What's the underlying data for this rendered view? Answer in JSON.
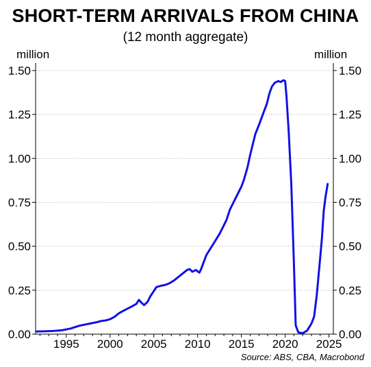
{
  "title": "SHORT-TERM ARRIVALS FROM CHINA",
  "subtitle": "(12 month aggregate)",
  "unit_left": "million",
  "unit_right": "million",
  "source": "Source: ABS, CBA, Macrobond",
  "colors": {
    "line": "#1010e6",
    "grid": "#c8c8c8",
    "axis": "#000000"
  },
  "chart_data": {
    "type": "line",
    "title": "SHORT-TERM ARRIVALS FROM CHINA",
    "subtitle": "(12 month aggregate)",
    "ylabel": "million",
    "ylim": [
      0,
      1.5
    ],
    "xlim": [
      1991.5,
      2025.5
    ],
    "y_ticks": [
      0.0,
      0.25,
      0.5,
      0.75,
      1.0,
      1.25,
      1.5
    ],
    "y_tick_labels": [
      "0.00",
      "0.25",
      "0.50",
      "0.75",
      "1.00",
      "1.25",
      "1.50"
    ],
    "x_ticks": [
      1995,
      2000,
      2005,
      2010,
      2015,
      2020,
      2025
    ],
    "x_tick_labels": [
      "1995",
      "2000",
      "2005",
      "2010",
      "2015",
      "2020",
      "2025"
    ],
    "grid": true,
    "series": [
      {
        "values": [
          [
            1991.6,
            0.015
          ],
          [
            1992.5,
            0.016
          ],
          [
            1993.5,
            0.018
          ],
          [
            1994.5,
            0.022
          ],
          [
            1995.5,
            0.032
          ],
          [
            1996.5,
            0.048
          ],
          [
            1997.5,
            0.058
          ],
          [
            1998.5,
            0.068
          ],
          [
            1999.0,
            0.075
          ],
          [
            1999.5,
            0.078
          ],
          [
            2000.0,
            0.085
          ],
          [
            2000.5,
            0.098
          ],
          [
            2001.0,
            0.118
          ],
          [
            2001.5,
            0.132
          ],
          [
            2002.0,
            0.145
          ],
          [
            2002.5,
            0.158
          ],
          [
            2003.0,
            0.172
          ],
          [
            2003.3,
            0.195
          ],
          [
            2003.6,
            0.178
          ],
          [
            2003.9,
            0.165
          ],
          [
            2004.3,
            0.185
          ],
          [
            2004.6,
            0.215
          ],
          [
            2005.0,
            0.245
          ],
          [
            2005.3,
            0.268
          ],
          [
            2005.8,
            0.275
          ],
          [
            2006.3,
            0.28
          ],
          [
            2006.8,
            0.29
          ],
          [
            2007.3,
            0.305
          ],
          [
            2007.8,
            0.325
          ],
          [
            2008.3,
            0.345
          ],
          [
            2008.8,
            0.365
          ],
          [
            2009.1,
            0.37
          ],
          [
            2009.4,
            0.355
          ],
          [
            2009.8,
            0.365
          ],
          [
            2010.2,
            0.35
          ],
          [
            2010.4,
            0.37
          ],
          [
            2010.7,
            0.41
          ],
          [
            2011.0,
            0.45
          ],
          [
            2011.5,
            0.49
          ],
          [
            2012.0,
            0.53
          ],
          [
            2012.5,
            0.57
          ],
          [
            2013.0,
            0.62
          ],
          [
            2013.3,
            0.65
          ],
          [
            2013.7,
            0.71
          ],
          [
            2014.0,
            0.74
          ],
          [
            2014.5,
            0.79
          ],
          [
            2015.0,
            0.84
          ],
          [
            2015.3,
            0.88
          ],
          [
            2015.7,
            0.95
          ],
          [
            2016.0,
            1.02
          ],
          [
            2016.3,
            1.08
          ],
          [
            2016.6,
            1.14
          ],
          [
            2017.0,
            1.19
          ],
          [
            2017.3,
            1.23
          ],
          [
            2017.6,
            1.27
          ],
          [
            2017.9,
            1.31
          ],
          [
            2018.2,
            1.37
          ],
          [
            2018.5,
            1.41
          ],
          [
            2018.8,
            1.43
          ],
          [
            2019.2,
            1.44
          ],
          [
            2019.5,
            1.435
          ],
          [
            2019.8,
            1.445
          ],
          [
            2020.0,
            1.44
          ],
          [
            2020.15,
            1.35
          ],
          [
            2020.4,
            1.15
          ],
          [
            2020.7,
            0.85
          ],
          [
            2021.0,
            0.4
          ],
          [
            2021.2,
            0.05
          ],
          [
            2021.5,
            0.01
          ],
          [
            2022.0,
            0.005
          ],
          [
            2022.5,
            0.02
          ],
          [
            2023.0,
            0.06
          ],
          [
            2023.3,
            0.1
          ],
          [
            2023.6,
            0.22
          ],
          [
            2023.9,
            0.38
          ],
          [
            2024.2,
            0.55
          ],
          [
            2024.4,
            0.7
          ],
          [
            2024.6,
            0.78
          ],
          [
            2024.85,
            0.855
          ]
        ]
      }
    ]
  }
}
